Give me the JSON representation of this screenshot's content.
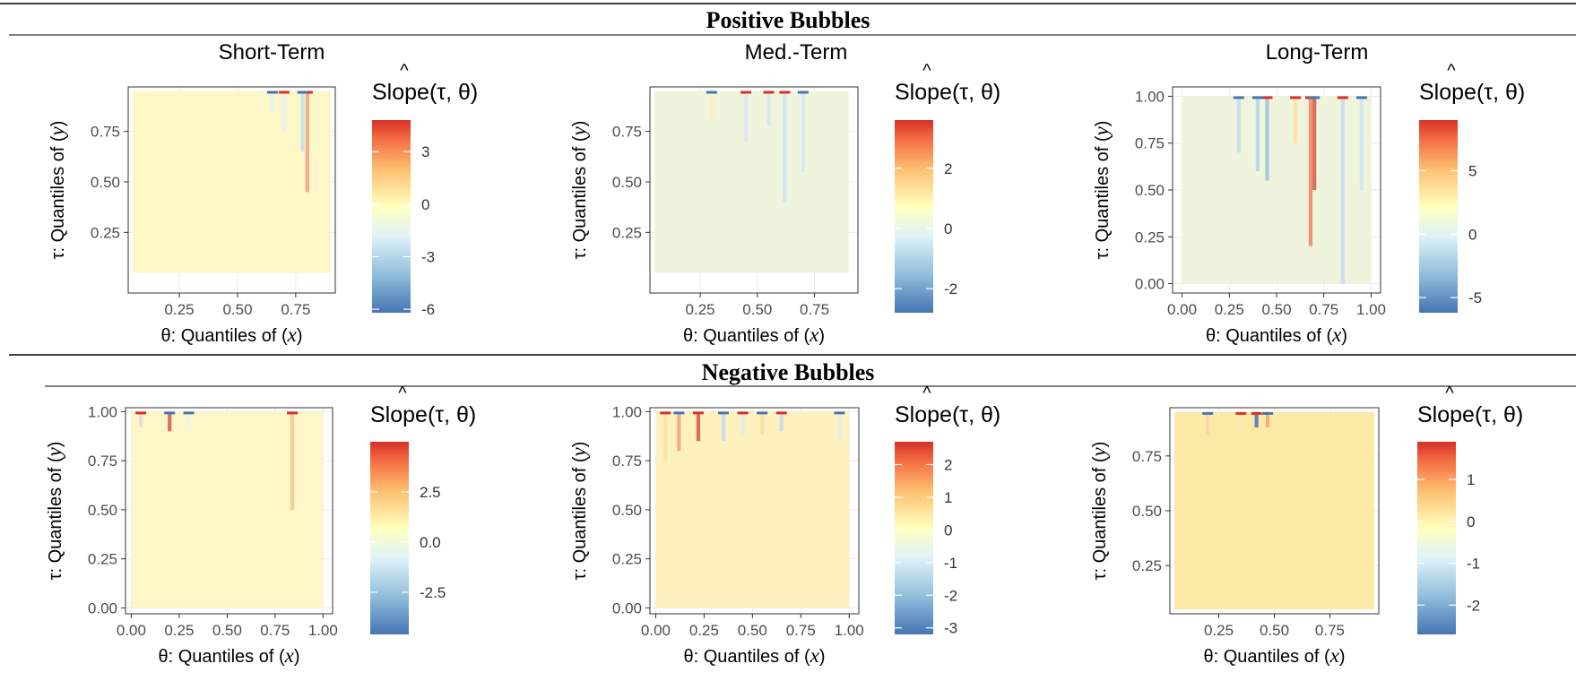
{
  "rows": [
    {
      "title": "Positive Bubbles"
    },
    {
      "title": "Negative Bubbles"
    }
  ],
  "axis_text": {
    "xlabel_prefix": "θ: Quantiles of (",
    "ylabel_prefix": "τ: Quantiles of (",
    "x_var": "x",
    "y_var": "y",
    "close_paren": ")",
    "legend_hat": "^",
    "legend_title": "Slope(τ, θ)"
  },
  "chart_data": [
    {
      "type": "heatmap",
      "panel_title": "Short-Term",
      "bubble": "Positive Bubbles",
      "xlabel": "θ: Quantiles of (x)",
      "ylabel": "τ: Quantiles of (y)",
      "xlim": [
        0.03,
        0.92
      ],
      "ylim": [
        -0.05,
        0.97
      ],
      "xticks": [
        0.25,
        0.5,
        0.75
      ],
      "xtick_labels": [
        "0.25",
        "0.50",
        "0.75"
      ],
      "yticks": [
        0.25,
        0.5,
        0.75
      ],
      "ytick_labels": [
        "0.25",
        "0.50",
        "0.75"
      ],
      "fill_x": [
        0.05,
        0.9
      ],
      "fill_y": [
        0.05,
        0.95
      ],
      "base_color": "#fdf6c6",
      "streaks": [
        [
          0.8,
          0.45,
          0.95,
          "#f4a582"
        ],
        [
          0.78,
          0.65,
          0.95,
          "#c9dff0"
        ],
        [
          0.7,
          0.75,
          0.95,
          "#e8f0f4"
        ],
        [
          0.65,
          0.85,
          0.95,
          "#eaf2f5"
        ]
      ],
      "legend": {
        "min": -6.2,
        "max": 4.8,
        "ticks": [
          3,
          0,
          -3,
          -6
        ],
        "tick_labels": [
          "3",
          "0",
          "-3",
          "-6"
        ]
      },
      "grid": true
    },
    {
      "type": "heatmap",
      "panel_title": "Med.-Term",
      "bubble": "Positive Bubbles",
      "xlabel": "θ: Quantiles of (x)",
      "ylabel": "τ: Quantiles of (y)",
      "xlim": [
        0.03,
        0.94
      ],
      "ylim": [
        -0.05,
        0.97
      ],
      "xticks": [
        0.25,
        0.5,
        0.75
      ],
      "xtick_labels": [
        "0.25",
        "0.50",
        "0.75"
      ],
      "yticks": [
        0.25,
        0.5,
        0.75
      ],
      "ytick_labels": [
        "0.25",
        "0.50",
        "0.75"
      ],
      "fill_x": [
        0.05,
        0.9
      ],
      "fill_y": [
        0.05,
        0.95
      ],
      "base_color": "#eef5dc",
      "streaks": [
        [
          0.62,
          0.4,
          0.95,
          "#cfe2ef"
        ],
        [
          0.7,
          0.55,
          0.95,
          "#d8e8f2"
        ],
        [
          0.45,
          0.7,
          0.95,
          "#dbe9f2"
        ],
        [
          0.3,
          0.8,
          0.95,
          "#fdf0b8"
        ],
        [
          0.55,
          0.78,
          0.95,
          "#d6e6f1"
        ]
      ],
      "legend": {
        "min": -2.8,
        "max": 3.6,
        "ticks": [
          2,
          0,
          -2
        ],
        "tick_labels": [
          "2",
          "0",
          "-2"
        ]
      },
      "grid": true
    },
    {
      "type": "heatmap",
      "panel_title": "Long-Term",
      "bubble": "Positive Bubbles",
      "xlabel": "θ: Quantiles of (x)",
      "ylabel": "τ: Quantiles of (y)",
      "xlim": [
        -0.05,
        1.05
      ],
      "ylim": [
        -0.05,
        1.05
      ],
      "xticks": [
        0,
        0.25,
        0.5,
        0.75,
        1
      ],
      "xtick_labels": [
        "0.00",
        "0.25",
        "0.50",
        "0.75",
        "1.00"
      ],
      "yticks": [
        0,
        0.25,
        0.5,
        0.75,
        1
      ],
      "ytick_labels": [
        "0.00",
        "0.25",
        "0.50",
        "0.75",
        "1.00"
      ],
      "fill_x": [
        0,
        1
      ],
      "fill_y": [
        0,
        1
      ],
      "base_color": "#eef5dc",
      "streaks": [
        [
          0.68,
          0.2,
          1,
          "#f08a6a"
        ],
        [
          0.7,
          0.5,
          1,
          "#d6604d"
        ],
        [
          0.45,
          0.55,
          1,
          "#9ec3e0"
        ],
        [
          0.4,
          0.6,
          1,
          "#b9d4ea"
        ],
        [
          0.85,
          0,
          1,
          "#c6dbef"
        ],
        [
          0.3,
          0.7,
          1,
          "#c9dcec"
        ],
        [
          0.6,
          0.75,
          1,
          "#fbe3a0"
        ],
        [
          0.95,
          0.5,
          1,
          "#d2e4f0"
        ]
      ],
      "legend": {
        "min": -6.2,
        "max": 9.0,
        "ticks": [
          5,
          0,
          -5
        ],
        "tick_labels": [
          "5",
          "0",
          "-5"
        ]
      },
      "grid": true
    },
    {
      "type": "heatmap",
      "panel_title": "",
      "bubble": "Negative Bubbles",
      "xlabel": "θ: Quantiles of (x)",
      "ylabel": "τ: Quantiles of (y)",
      "xlim": [
        -0.03,
        1.05
      ],
      "ylim": [
        -0.03,
        1.02
      ],
      "xticks": [
        0,
        0.25,
        0.5,
        0.75,
        1
      ],
      "xtick_labels": [
        "0.00",
        "0.25",
        "0.50",
        "0.75",
        "1.00"
      ],
      "yticks": [
        0,
        0.25,
        0.5,
        0.75,
        1
      ],
      "ytick_labels": [
        "0.00",
        "0.25",
        "0.50",
        "0.75",
        "1.00"
      ],
      "fill_x": [
        0,
        1
      ],
      "fill_y": [
        0,
        1
      ],
      "base_color": "#fdf6c6",
      "streaks": [
        [
          0.84,
          0.5,
          1,
          "#f6c99a"
        ],
        [
          0.2,
          0.9,
          1,
          "#d6604d"
        ],
        [
          0.05,
          0.92,
          1,
          "#e8d9d0"
        ],
        [
          0.3,
          0.93,
          1,
          "#eef2f3"
        ]
      ],
      "legend": {
        "min": -4.6,
        "max": 5.0,
        "ticks": [
          2.5,
          0,
          -2.5
        ],
        "tick_labels": [
          "2.5",
          "0.0",
          "-2.5"
        ]
      },
      "grid": true
    },
    {
      "type": "heatmap",
      "panel_title": "",
      "bubble": "Negative Bubbles",
      "xlabel": "θ: Quantiles of (x)",
      "ylabel": "τ: Quantiles of (y)",
      "xlim": [
        -0.03,
        1.05
      ],
      "ylim": [
        -0.03,
        1.02
      ],
      "xticks": [
        0,
        0.25,
        0.5,
        0.75,
        1
      ],
      "xtick_labels": [
        "0.00",
        "0.25",
        "0.50",
        "0.75",
        "1.00"
      ],
      "yticks": [
        0,
        0.25,
        0.5,
        0.75,
        1
      ],
      "ytick_labels": [
        "0.00",
        "0.25",
        "0.50",
        "0.75",
        "1.00"
      ],
      "fill_x": [
        0,
        1
      ],
      "fill_y": [
        0,
        1
      ],
      "base_color": "#fdf2bd",
      "streaks": [
        [
          0.05,
          0.75,
          1,
          "#fbe3a0"
        ],
        [
          0.12,
          0.8,
          1,
          "#f4a582"
        ],
        [
          0.22,
          0.85,
          1,
          "#d6604d"
        ],
        [
          0.35,
          0.85,
          1,
          "#c6dbef"
        ],
        [
          0.45,
          0.88,
          1,
          "#e2ecf2"
        ],
        [
          0.55,
          0.88,
          1,
          "#fae0a0"
        ],
        [
          0.65,
          0.9,
          1,
          "#c6dbef"
        ],
        [
          0.95,
          0.85,
          1,
          "#e6ecee"
        ]
      ],
      "legend": {
        "min": -3.2,
        "max": 2.7,
        "ticks": [
          2,
          1,
          0,
          -1,
          -2,
          -3
        ],
        "tick_labels": [
          "2",
          "1",
          "0",
          "-1",
          "-2",
          "-3"
        ]
      },
      "grid": true
    },
    {
      "type": "heatmap",
      "panel_title": "",
      "bubble": "Negative Bubbles",
      "xlabel": "θ: Quantiles of (x)",
      "ylabel": "τ: Quantiles of (y)",
      "xlim": [
        0.03,
        0.97
      ],
      "ylim": [
        0.03,
        0.97
      ],
      "xticks": [
        0.25,
        0.5,
        0.75
      ],
      "xtick_labels": [
        "0.25",
        "0.50",
        "0.75"
      ],
      "yticks": [
        0.25,
        0.5,
        0.75
      ],
      "ytick_labels": [
        "0.25",
        "0.50",
        "0.75"
      ],
      "fill_x": [
        0.05,
        0.95
      ],
      "fill_y": [
        0.05,
        0.95
      ],
      "base_color": "#fde9a6",
      "streaks": [
        [
          0.42,
          0.88,
          0.95,
          "#4a7ab8"
        ],
        [
          0.47,
          0.88,
          0.95,
          "#f4a582"
        ],
        [
          0.35,
          0.86,
          0.95,
          "#fbe7b0"
        ],
        [
          0.2,
          0.85,
          0.95,
          "#f6d6b0"
        ]
      ],
      "legend": {
        "min": -2.7,
        "max": 1.9,
        "ticks": [
          1,
          0,
          -1,
          -2
        ],
        "tick_labels": [
          "1",
          "0",
          "-1",
          "-2"
        ]
      },
      "grid": true
    }
  ]
}
